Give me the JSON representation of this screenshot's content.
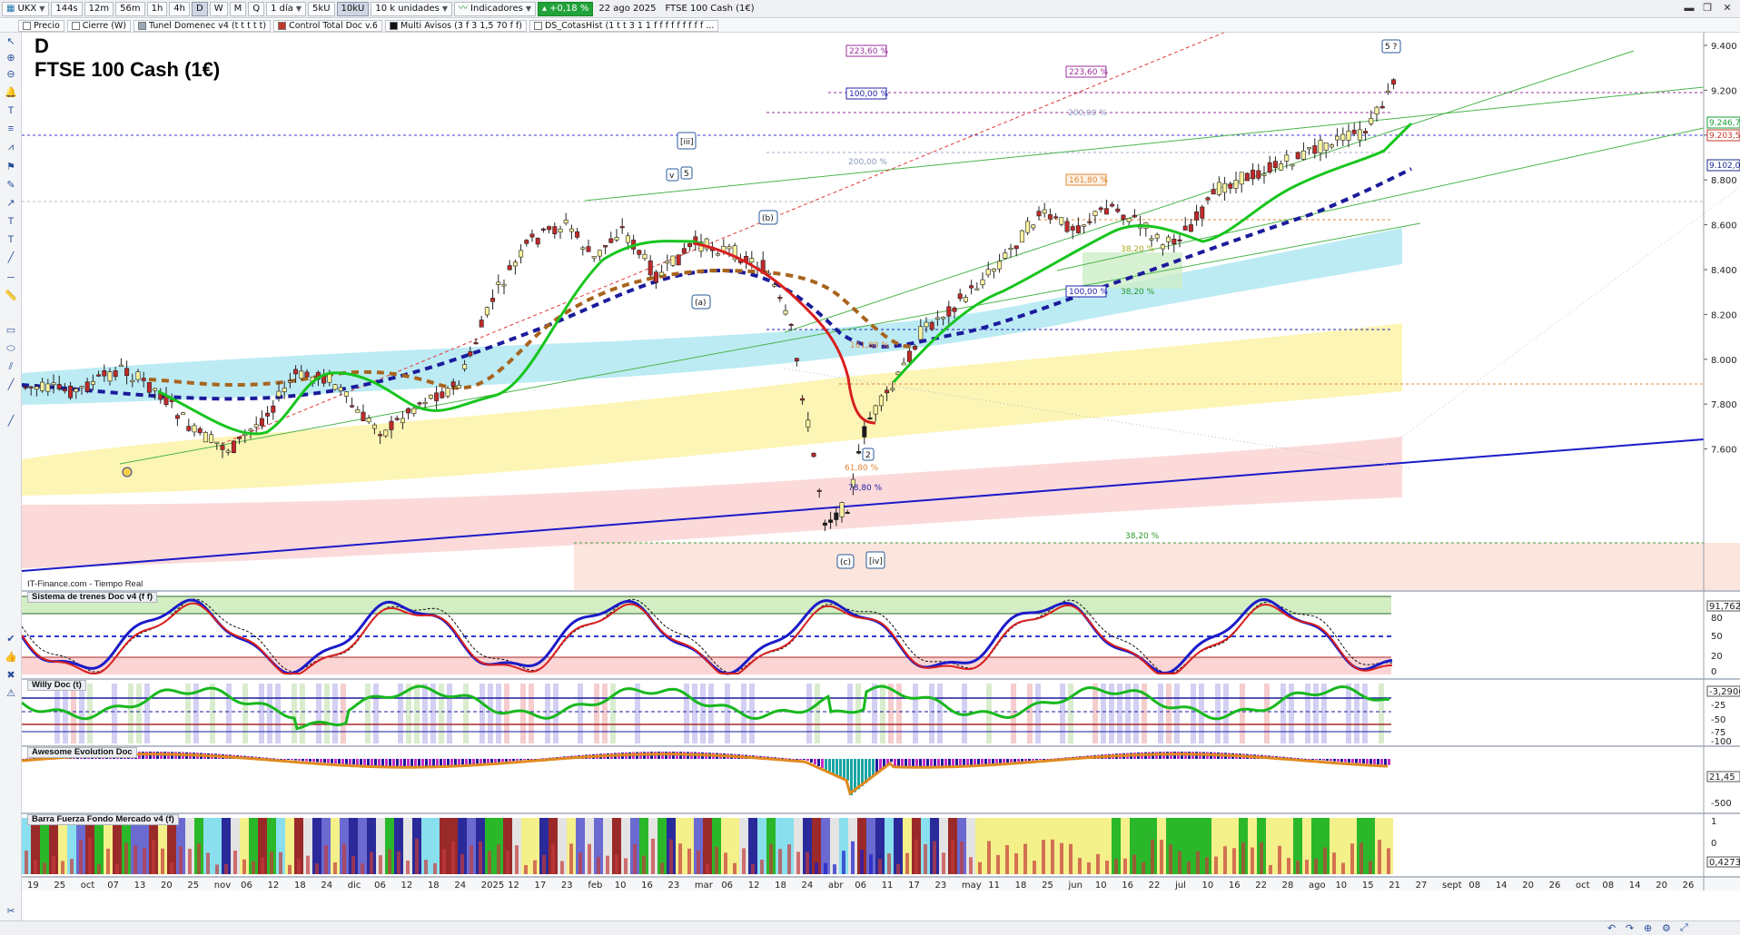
{
  "toolbar": {
    "symbol": "UKX",
    "timeframes": [
      "144s",
      "12m",
      "56m",
      "1h",
      "4h",
      "D",
      "W",
      "M",
      "Q"
    ],
    "active_timeframe": "D",
    "period": "1 día",
    "units_a": "5kU",
    "units_b": "10kU",
    "units_select": "10 k unidades",
    "indicators_label": "Indicadores",
    "change_pct": "+0,18 %",
    "date": "22 ago 2025",
    "instrument": "FTSE 100 Cash (1€)"
  },
  "indicator_tabs": [
    {
      "label": "Precio",
      "color": "#ffffff"
    },
    {
      "label": "Cierre (W)",
      "color": "#ffffff"
    },
    {
      "label": "Tunel Domenec v4 (t t t t t)",
      "color": "#9aa6b8"
    },
    {
      "label": "Control Total Doc v.6",
      "color": "#c0392b"
    },
    {
      "label": "Multi Avisos (3 f 3 1,5 70 f f)",
      "color": "#111111"
    },
    {
      "label": "DS_CotasHist (1 t t 3 1 1 f f f f f f f f f ...",
      "color": "#ffffff"
    }
  ],
  "chart": {
    "timeframe_letter": "D",
    "name": "FTSE 100 Cash (1€)",
    "feed": "IT-Finance.com - Tiempo Real",
    "price_ticks": [
      "9.400",
      "9.200",
      "9.000",
      "8.800",
      "8.600",
      "8.400",
      "8.200",
      "8.000",
      "7.800",
      "7.600"
    ],
    "price_tags": [
      {
        "label": "9.246,7",
        "color": "#1aa33a"
      },
      {
        "label": "9.203,5",
        "color": "#c0392b"
      },
      {
        "label": "9.102,0",
        "color": "#1b2a8a"
      }
    ],
    "fib_labels": [
      "223,60 %",
      "223,60 %",
      "100,00 %",
      "200,00 %",
      "200,00 %",
      "161,80 %",
      "100,00 %",
      "38,20 %",
      "38,20 %",
      "161,80 %",
      "38,20 %",
      "61,80 %",
      "78,80 %"
    ],
    "wave_labels": [
      "[iii]",
      "v",
      "5",
      "(b)",
      "(a)",
      "(c)",
      "[iv]",
      "2",
      "5 ?"
    ],
    "date_ticks": [
      "19",
      "25",
      "oct",
      "07",
      "13",
      "20",
      "25",
      "nov",
      "06",
      "12",
      "18",
      "24",
      "dic",
      "06",
      "12",
      "18",
      "24",
      "2025",
      "12",
      "17",
      "23",
      "feb",
      "10",
      "16",
      "23",
      "mar",
      "06",
      "12",
      "18",
      "24",
      "abr",
      "06",
      "11",
      "17",
      "23",
      "may",
      "11",
      "18",
      "25",
      "jun",
      "10",
      "16",
      "22",
      "jul",
      "10",
      "16",
      "22",
      "28",
      "ago",
      "10",
      "15",
      "21",
      "27",
      "sept",
      "08",
      "14",
      "20",
      "26",
      "oct",
      "08",
      "14",
      "20",
      "26"
    ]
  },
  "panes": [
    {
      "title": "Sistema de trenes Doc v4 (f f)",
      "value": "91,762",
      "ticks": [
        "80",
        "50",
        "20",
        "0"
      ]
    },
    {
      "title": "Willy Doc (t)",
      "value": "-3,2906",
      "ticks": [
        "-25",
        "-50",
        "-75",
        "-100"
      ]
    },
    {
      "title": "Awesome Evolution Doc",
      "value": "21,45",
      "ticks": [
        "-500"
      ]
    },
    {
      "title": "Barra Fuerza Fondo Mercado v4 (f)",
      "value": "0,4273",
      "ticks": [
        "1",
        "0"
      ]
    }
  ]
}
